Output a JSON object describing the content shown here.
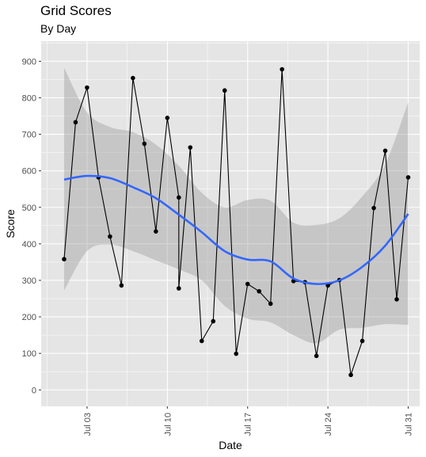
{
  "chart_data": {
    "type": "line",
    "title": "Grid Scores",
    "subtitle": "By Day",
    "xlabel": "Date",
    "ylabel": "Score",
    "x_tick_labels": [
      "Jul 03",
      "Jul 10",
      "Jul 17",
      "Jul 24",
      "Jul 31"
    ],
    "y_ticks": [
      0,
      100,
      200,
      300,
      400,
      500,
      600,
      700,
      800,
      900
    ],
    "ylim": [
      -45,
      955
    ],
    "xlim": [
      "2023-06-29",
      "2023-08-01"
    ],
    "grid": true,
    "points": [
      {
        "x": "2023-07-01",
        "y": 358
      },
      {
        "x": "2023-07-02",
        "y": 733
      },
      {
        "x": "2023-07-03",
        "y": 828
      },
      {
        "x": "2023-07-04",
        "y": 582
      },
      {
        "x": "2023-07-05",
        "y": 420
      },
      {
        "x": "2023-07-06",
        "y": 286
      },
      {
        "x": "2023-07-07",
        "y": 854
      },
      {
        "x": "2023-07-08",
        "y": 674
      },
      {
        "x": "2023-07-09",
        "y": 434
      },
      {
        "x": "2023-07-10",
        "y": 745
      },
      {
        "x": "2023-07-11",
        "y": 527
      },
      {
        "x": "2023-07-11",
        "y": 278
      },
      {
        "x": "2023-07-12",
        "y": 664
      },
      {
        "x": "2023-07-13",
        "y": 134
      },
      {
        "x": "2023-07-14",
        "y": 188
      },
      {
        "x": "2023-07-15",
        "y": 820
      },
      {
        "x": "2023-07-16",
        "y": 99
      },
      {
        "x": "2023-07-17",
        "y": 290
      },
      {
        "x": "2023-07-18",
        "y": 270
      },
      {
        "x": "2023-07-19",
        "y": 236
      },
      {
        "x": "2023-07-20",
        "y": 878
      },
      {
        "x": "2023-07-21",
        "y": 298
      },
      {
        "x": "2023-07-22",
        "y": 295
      },
      {
        "x": "2023-07-23",
        "y": 93
      },
      {
        "x": "2023-07-24",
        "y": 286
      },
      {
        "x": "2023-07-25",
        "y": 301
      },
      {
        "x": "2023-07-26",
        "y": 41
      },
      {
        "x": "2023-07-27",
        "y": 134
      },
      {
        "x": "2023-07-28",
        "y": 498
      },
      {
        "x": "2023-07-29",
        "y": 655
      },
      {
        "x": "2023-07-30",
        "y": 248
      },
      {
        "x": "2023-07-31",
        "y": 582
      }
    ],
    "smooth": {
      "x": [
        "2023-07-01",
        "2023-07-03",
        "2023-07-05",
        "2023-07-07",
        "2023-07-09",
        "2023-07-11",
        "2023-07-13",
        "2023-07-15",
        "2023-07-17",
        "2023-07-19",
        "2023-07-21",
        "2023-07-23",
        "2023-07-25",
        "2023-07-27",
        "2023-07-29",
        "2023-07-31"
      ],
      "fit": [
        576,
        586,
        580,
        555,
        525,
        480,
        432,
        380,
        357,
        352,
        305,
        290,
        300,
        337,
        395,
        482
      ],
      "upper": [
        882,
        760,
        720,
        706,
        672,
        614,
        540,
        500,
        520,
        518,
        458,
        452,
        470,
        530,
        618,
        788
      ],
      "lower": [
        272,
        380,
        398,
        380,
        355,
        330,
        300,
        230,
        195,
        185,
        150,
        128,
        165,
        170,
        180,
        178
      ],
      "color": "#3366ff",
      "band_color": "#999999"
    },
    "colors": {
      "panel": "#e5e5e5",
      "grid": "#ffffff",
      "line": "#000000",
      "point": "#000000"
    }
  }
}
